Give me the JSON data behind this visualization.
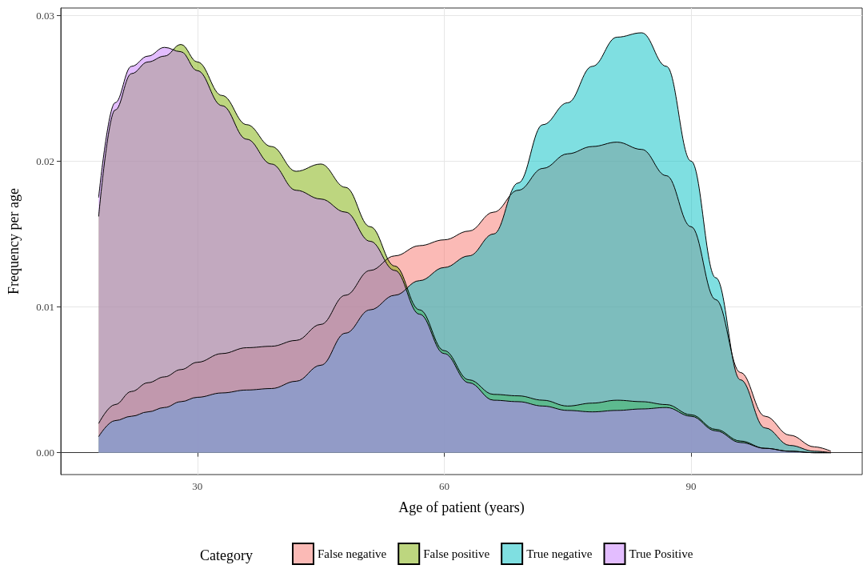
{
  "chart_data": {
    "type": "area",
    "xlabel": "Age of patient (years)",
    "ylabel": "Frequency per age",
    "legend_title": "Category",
    "legend": "bottom",
    "grid": true,
    "marker": "none",
    "line_style": "solid",
    "x": [
      18,
      20,
      22,
      24,
      26,
      28,
      30,
      33,
      36,
      39,
      42,
      45,
      48,
      51,
      54,
      57,
      60,
      63,
      66,
      69,
      72,
      75,
      78,
      81,
      84,
      87,
      90,
      93,
      96,
      99,
      102,
      105,
      107
    ],
    "xlim": [
      13.4,
      110.8
    ],
    "xticks": [
      30,
      60,
      90
    ],
    "ylim": [
      -0.0015,
      0.0305
    ],
    "yticks": [
      {
        "value": 0,
        "label": "0.00"
      },
      {
        "value": 0.01,
        "label": "0.01"
      },
      {
        "value": 0.02,
        "label": "0.02"
      },
      {
        "value": 0.03,
        "label": "0.03"
      }
    ],
    "series": [
      {
        "name": "False negative",
        "color": "#f8766d",
        "values": [
          0.002,
          0.0033,
          0.0042,
          0.0048,
          0.0052,
          0.0057,
          0.0062,
          0.0068,
          0.0072,
          0.0073,
          0.0077,
          0.0088,
          0.0108,
          0.0125,
          0.0135,
          0.0142,
          0.0146,
          0.0152,
          0.0165,
          0.018,
          0.0195,
          0.0205,
          0.021,
          0.0213,
          0.0208,
          0.019,
          0.0155,
          0.0105,
          0.0055,
          0.0025,
          0.0012,
          0.0004,
          0.0001
        ]
      },
      {
        "name": "False positive",
        "color": "#7cae00",
        "values": [
          0.0162,
          0.0235,
          0.026,
          0.0268,
          0.0272,
          0.028,
          0.0268,
          0.0245,
          0.0225,
          0.021,
          0.0193,
          0.0198,
          0.0182,
          0.0155,
          0.0128,
          0.0098,
          0.007,
          0.005,
          0.004,
          0.0039,
          0.0036,
          0.0032,
          0.0034,
          0.0036,
          0.0035,
          0.0033,
          0.0026,
          0.0016,
          0.0008,
          0.0003,
          0.0001,
          0,
          0
        ]
      },
      {
        "name": "True negative",
        "color": "#00bfc4",
        "values": [
          0.0011,
          0.0022,
          0.0025,
          0.0028,
          0.0031,
          0.0035,
          0.0038,
          0.0041,
          0.0043,
          0.0044,
          0.0049,
          0.006,
          0.0082,
          0.0098,
          0.0108,
          0.0118,
          0.0127,
          0.0135,
          0.015,
          0.0185,
          0.0225,
          0.024,
          0.0265,
          0.0285,
          0.0288,
          0.0265,
          0.02,
          0.012,
          0.005,
          0.0017,
          0.0005,
          0.0001,
          0
        ]
      },
      {
        "name": "True Positive",
        "color": "#c77cff",
        "values": [
          0.0175,
          0.024,
          0.0265,
          0.0272,
          0.0278,
          0.0275,
          0.0262,
          0.0238,
          0.0215,
          0.0198,
          0.018,
          0.0174,
          0.0165,
          0.0145,
          0.0125,
          0.0095,
          0.0068,
          0.0048,
          0.0036,
          0.0035,
          0.0032,
          0.0029,
          0.0028,
          0.0029,
          0.003,
          0.0031,
          0.0025,
          0.0015,
          0.0007,
          0.0003,
          0.0001,
          0,
          0
        ]
      }
    ]
  }
}
